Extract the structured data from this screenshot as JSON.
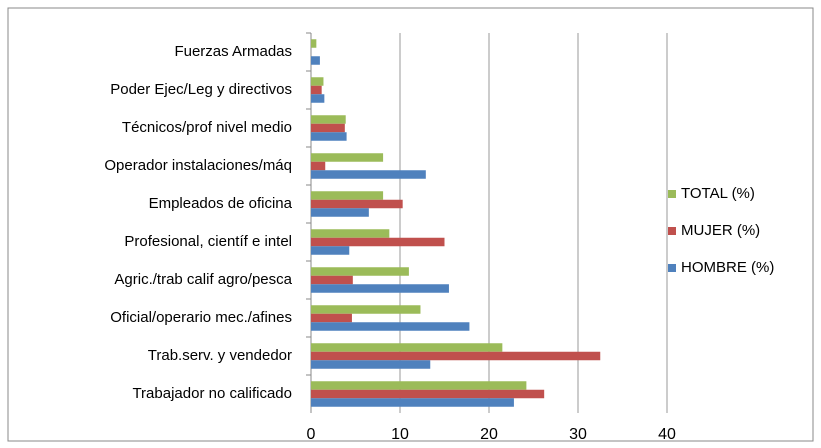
{
  "chart_data": {
    "type": "bar",
    "orientation": "horizontal",
    "categories": [
      "Fuerzas Armadas",
      "Poder Ejec/Leg y directivos",
      "Técnicos/prof nivel medio",
      "Operador instalaciones/máq",
      "Empleados de oficina",
      "Profesional, científ e intel",
      "Agric./trab calif agro/pesca",
      "Oficial/operario mec./afines",
      "Trab.serv. y vendedor",
      "Trabajador no calificado"
    ],
    "series": [
      {
        "name": "TOTAL (%)",
        "color": "#9bbb59",
        "values": [
          0.6,
          1.4,
          3.9,
          8.1,
          8.1,
          8.8,
          11.0,
          12.3,
          21.5,
          24.2
        ]
      },
      {
        "name": "MUJER (%)",
        "color": "#c0504d",
        "values": [
          0,
          1.2,
          3.8,
          1.6,
          10.3,
          15.0,
          4.7,
          4.6,
          32.5,
          26.2
        ]
      },
      {
        "name": "HOMBRE (%)",
        "color": "#4f81bd",
        "values": [
          1.0,
          1.5,
          4.0,
          12.9,
          6.5,
          4.3,
          15.5,
          17.8,
          13.4,
          22.8
        ]
      }
    ],
    "xlim": [
      0,
      40
    ],
    "xticks": [
      0,
      10,
      20,
      30,
      40
    ],
    "grid": true,
    "legend": "right"
  }
}
